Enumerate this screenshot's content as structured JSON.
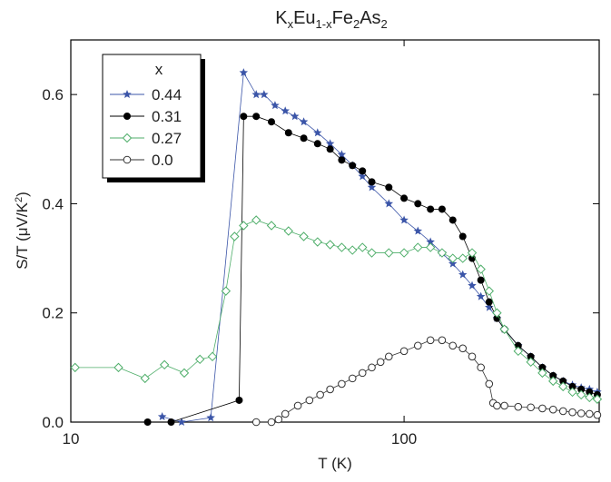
{
  "chart_data": {
    "type": "scatter",
    "title_parts": [
      {
        "text": "K"
      },
      {
        "text": "x",
        "sub": true
      },
      {
        "text": "Eu"
      },
      {
        "text": "1-x",
        "sub": true
      },
      {
        "text": "Fe"
      },
      {
        "text": "2",
        "sub": true
      },
      {
        "text": "As"
      },
      {
        "text": "2",
        "sub": true
      }
    ],
    "xlabel": "T (K)",
    "ylabel_parts": [
      {
        "text": "S/T (μV/K"
      },
      {
        "text": "2",
        "sup": true
      },
      {
        "text": ")"
      }
    ],
    "xscale": "log",
    "xlim": [
      10,
      385
    ],
    "xticks": [
      10,
      100
    ],
    "ylim": [
      0,
      0.7
    ],
    "yticks": [
      {
        "value": 0,
        "label": "0.0"
      },
      0.2,
      0.4,
      0.6
    ],
    "legend_title": "x",
    "legend": "upper left",
    "connect": true,
    "series": [
      {
        "name": "0.44",
        "color": "#3b55a8",
        "marker": "star",
        "x": [
          18.8,
          21.5,
          26.3,
          33,
          36,
          38,
          41,
          44,
          47,
          50,
          55,
          60,
          65,
          70,
          75,
          80,
          90,
          100,
          110,
          120,
          130,
          140,
          150,
          160,
          170,
          180,
          190,
          200,
          220,
          240,
          260,
          280,
          300,
          320,
          340,
          360,
          380
        ],
        "values": [
          0.01,
          0.0,
          0.008,
          0.64,
          0.6,
          0.6,
          0.58,
          0.57,
          0.56,
          0.55,
          0.53,
          0.51,
          0.49,
          0.47,
          0.45,
          0.43,
          0.4,
          0.37,
          0.35,
          0.33,
          0.31,
          0.29,
          0.27,
          0.25,
          0.23,
          0.21,
          0.19,
          0.17,
          0.14,
          0.12,
          0.1,
          0.085,
          0.075,
          0.068,
          0.063,
          0.06,
          0.055
        ]
      },
      {
        "name": "0.31",
        "color": "#000000",
        "marker": "circle",
        "x": [
          17,
          20,
          32,
          33,
          36,
          40,
          45,
          50,
          55,
          60,
          65,
          70,
          75,
          80,
          90,
          100,
          110,
          120,
          130,
          140,
          150,
          160,
          170,
          180,
          190,
          200,
          220,
          240,
          260,
          280,
          300,
          320,
          340,
          360,
          380
        ],
        "values": [
          0.0,
          0.0,
          0.04,
          0.56,
          0.56,
          0.55,
          0.53,
          0.52,
          0.51,
          0.5,
          0.48,
          0.47,
          0.46,
          0.44,
          0.43,
          0.41,
          0.4,
          0.39,
          0.39,
          0.37,
          0.34,
          0.3,
          0.26,
          0.22,
          0.19,
          0.17,
          0.14,
          0.12,
          0.1,
          0.085,
          0.075,
          0.065,
          0.06,
          0.055,
          0.05
        ]
      },
      {
        "name": "0.27",
        "color": "#4fae6a",
        "marker": "diamond",
        "x": [
          10.3,
          13.9,
          16.7,
          19.1,
          21.9,
          24.4,
          26.6,
          29.2,
          31,
          33,
          36,
          40,
          45,
          50,
          55,
          60,
          65,
          70,
          75,
          80,
          90,
          100,
          110,
          120,
          130,
          140,
          150,
          160,
          170,
          180,
          190,
          200,
          220,
          240,
          260,
          280,
          300,
          320,
          340,
          360,
          380
        ],
        "values": [
          0.1,
          0.1,
          0.08,
          0.105,
          0.09,
          0.115,
          0.12,
          0.24,
          0.34,
          0.36,
          0.37,
          0.36,
          0.35,
          0.34,
          0.33,
          0.325,
          0.32,
          0.315,
          0.32,
          0.31,
          0.31,
          0.31,
          0.32,
          0.32,
          0.31,
          0.3,
          0.3,
          0.31,
          0.28,
          0.24,
          0.2,
          0.17,
          0.13,
          0.11,
          0.09,
          0.075,
          0.065,
          0.055,
          0.05,
          0.045,
          0.042
        ]
      },
      {
        "name": "0.0",
        "color": "#333333",
        "marker": "open-circle",
        "x": [
          36,
          40,
          42,
          44,
          48,
          52,
          56,
          60,
          65,
          70,
          75,
          80,
          85,
          90,
          100,
          110,
          120,
          130,
          140,
          150,
          160,
          170,
          180,
          185,
          190,
          200,
          220,
          240,
          260,
          280,
          300,
          320,
          340,
          360,
          380
        ],
        "values": [
          0.0,
          0.0,
          0.005,
          0.015,
          0.03,
          0.04,
          0.05,
          0.06,
          0.07,
          0.08,
          0.09,
          0.1,
          0.11,
          0.12,
          0.13,
          0.14,
          0.15,
          0.15,
          0.14,
          0.135,
          0.12,
          0.1,
          0.07,
          0.035,
          0.03,
          0.03,
          0.028,
          0.027,
          0.025,
          0.023,
          0.02,
          0.018,
          0.016,
          0.015,
          0.013
        ]
      }
    ]
  }
}
